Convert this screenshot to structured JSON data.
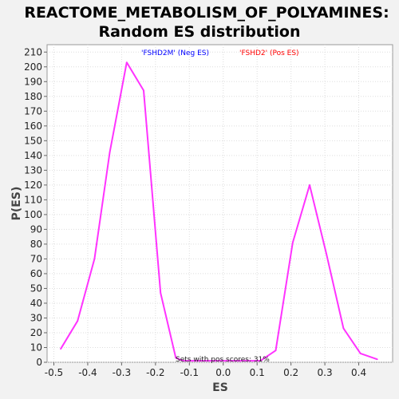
{
  "chart_data": {
    "type": "line",
    "title_lines": [
      "REACTOME_METABOLISM_OF_POLYAMINES:",
      "Random ES distribution"
    ],
    "xlabel": "ES",
    "ylabel": "P(ES)",
    "xlim": [
      -0.52,
      0.5
    ],
    "ylim": [
      0,
      215
    ],
    "x_ticks": [
      -0.5,
      -0.4,
      -0.3,
      -0.2,
      -0.1,
      0.0,
      0.1,
      0.2,
      0.3,
      0.4
    ],
    "x_tick_labels": [
      "-0.5",
      "-0.4",
      "-0.3",
      "-0.2",
      "-0.1",
      "0.0",
      "0.1",
      "0.2",
      "0.3",
      "0.4"
    ],
    "y_ticks": [
      0,
      10,
      20,
      30,
      40,
      50,
      60,
      70,
      80,
      90,
      100,
      110,
      120,
      130,
      140,
      150,
      160,
      170,
      180,
      190,
      200,
      210
    ],
    "grid": true,
    "legend": [
      {
        "label": "'FSHD2M' (Neg ES)",
        "color": "#0000ff"
      },
      {
        "label": "'FSHD2' (Pos ES)",
        "color": "#ff0000"
      }
    ],
    "annotation": "Sets with pos scores: 31%",
    "series": [
      {
        "color": "#ff33ff",
        "x": [
          -0.48,
          -0.43,
          -0.38,
          -0.335,
          -0.285,
          -0.235,
          -0.185,
          -0.14,
          -0.12,
          0.0,
          0.11,
          0.155,
          0.205,
          0.255,
          0.305,
          0.355,
          0.405,
          0.455
        ],
        "y": [
          9,
          28,
          70,
          142,
          203,
          184,
          47,
          3,
          1,
          1,
          1,
          8,
          81,
          120,
          73,
          23,
          6,
          2
        ]
      }
    ]
  }
}
